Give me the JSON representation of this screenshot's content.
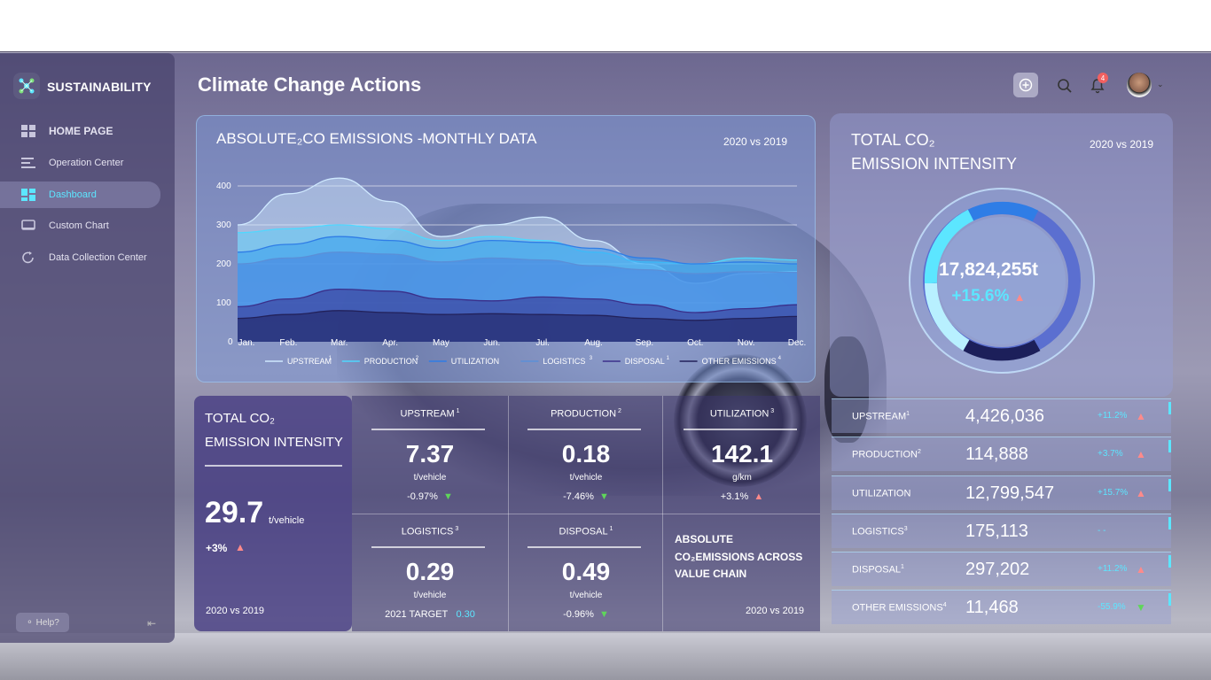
{
  "app": {
    "brand": "SUSTAINABILITY"
  },
  "sidebar": {
    "items": [
      {
        "label": "HOME PAGE",
        "icon": "grid-icon"
      },
      {
        "label": "Operation Center",
        "icon": "bars-icon"
      },
      {
        "label": "Dashboard",
        "icon": "dashboard-icon"
      },
      {
        "label": "Custom Chart",
        "icon": "monitor-icon"
      },
      {
        "label": "Data Collection Center",
        "icon": "refresh-icon"
      }
    ],
    "help": "Help?"
  },
  "header": {
    "title": "Climate Change Actions",
    "notifications": "4"
  },
  "chart_panel": {
    "title": "ABSOLUTE₂CO   EMISSIONS -MONTHLY DATA",
    "compare": "2020 vs 2019"
  },
  "chart_data": {
    "type": "area",
    "categories": [
      "Jan.",
      "Feb.",
      "Mar.",
      "Apr.",
      "May",
      "Jun.",
      "Jul.",
      "Aug.",
      "Sep.",
      "Oct.",
      "Nov.",
      "Dec."
    ],
    "yticks": [
      "0",
      "100",
      "200",
      "300",
      "400"
    ],
    "ylim": [
      0,
      400
    ],
    "series": [
      {
        "name": "UPSTREAM",
        "sup": "1",
        "values": [
          300,
          380,
          420,
          360,
          270,
          300,
          320,
          260,
          200,
          150,
          175,
          180
        ]
      },
      {
        "name": "PRODUCTION",
        "sup": "2",
        "values": [
          280,
          290,
          300,
          290,
          260,
          270,
          260,
          230,
          205,
          200,
          215,
          210
        ]
      },
      {
        "name": "UTILIZATION",
        "sup": "",
        "values": [
          230,
          250,
          270,
          260,
          240,
          260,
          255,
          240,
          215,
          200,
          205,
          200
        ]
      },
      {
        "name": "LOGISTICS",
        "sup": "3",
        "values": [
          200,
          215,
          230,
          225,
          205,
          215,
          210,
          195,
          185,
          175,
          180,
          178
        ]
      },
      {
        "name": "DISPOSAL",
        "sup": "1",
        "values": [
          90,
          110,
          135,
          130,
          110,
          105,
          115,
          110,
          95,
          75,
          85,
          95
        ]
      },
      {
        "name": "OTHER EMISSIONS",
        "sup": "4",
        "values": [
          60,
          70,
          80,
          75,
          70,
          72,
          70,
          68,
          60,
          55,
          60,
          65
        ]
      }
    ],
    "colors": [
      "#cfe9ff",
      "#4fd8ff",
      "#2f7de6",
      "#5a8fd8",
      "#3a2f8a",
      "#22215a"
    ],
    "legend": "bottom"
  },
  "right_panel": {
    "title1": "TOTAL CO₂",
    "title2": "EMISSION INTENSITY",
    "compare": "2020 vs 2019",
    "value": "17,824,255t",
    "pct": "+15.6%"
  },
  "right_rows": [
    {
      "name": "UPSTREAM",
      "sup": "1",
      "value": "4,426,036",
      "pct": "+11.2%",
      "dir": "up"
    },
    {
      "name": "PRODUCTION",
      "sup": "2",
      "value": "114,888",
      "pct": "+3.7%",
      "dir": "up"
    },
    {
      "name": "UTILIZATION",
      "sup": "",
      "value": "12,799,547",
      "pct": "+15.7%",
      "dir": "up"
    },
    {
      "name": "LOGISTICS",
      "sup": "3",
      "value": "175,113",
      "pct": "- -",
      "dir": "none"
    },
    {
      "name": "DISPOSAL",
      "sup": "1",
      "value": "297,202",
      "pct": "+11.2%",
      "dir": "up"
    },
    {
      "name": "OTHER EMISSIONS",
      "sup": "4",
      "value": "11,468",
      "pct": "-55.9%",
      "dir": "down"
    }
  ],
  "left_card": {
    "title1": "TOTAL CO₂",
    "title2": "EMISSION INTENSITY",
    "value": "29.7",
    "unit": "t/vehicle",
    "pct": "+3%",
    "compare": "2020 vs 2019"
  },
  "metrics": [
    {
      "name": "UPSTREAM",
      "sup": "1",
      "value": "7.37",
      "unit": "t/vehicle",
      "pct": "-0.97%",
      "dir": "down"
    },
    {
      "name": "PRODUCTION",
      "sup": "2",
      "value": "0.18",
      "unit": "t/vehicle",
      "pct": "-7.46%",
      "dir": "down"
    },
    {
      "name": "UTILIZATION",
      "sup": "3",
      "value": "142.1",
      "unit": "g/km",
      "pct": "+3.1%",
      "dir": "up"
    },
    {
      "name": "LOGISTICS",
      "sup": "3",
      "value": "0.29",
      "unit": "t/vehicle",
      "pct": "2021 TARGET",
      "target": "0.30",
      "dir": "none"
    },
    {
      "name": "DISPOSAL",
      "sup": "1",
      "value": "0.49",
      "unit": "t/vehicle",
      "pct": "-0.96%",
      "dir": "down"
    }
  ],
  "value_chain": {
    "line1": "ABSOLUTE",
    "line2": "CO₂EMISSIONS ACROSS",
    "line3": "VALUE CHAIN",
    "compare": "2020 vs 2019"
  },
  "arrows": {
    "up": "▲",
    "down": "▼"
  }
}
